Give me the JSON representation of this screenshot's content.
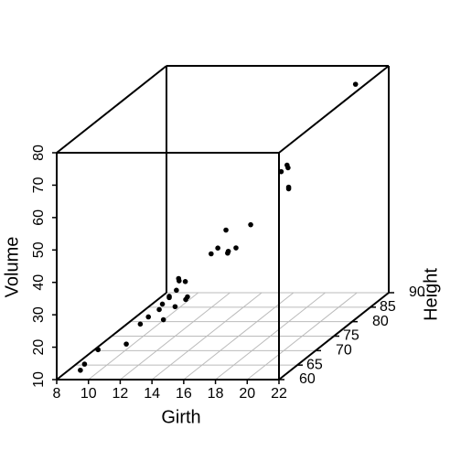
{
  "chart_data": {
    "type": "scatter3d",
    "xlabel": "Girth",
    "ylabel": "Height",
    "zlabel": "Volume",
    "x": [
      8.3,
      8.6,
      8.8,
      10.5,
      10.7,
      10.8,
      11.0,
      11.0,
      11.1,
      11.2,
      11.3,
      11.4,
      11.4,
      11.7,
      12.0,
      12.9,
      12.9,
      13.3,
      13.7,
      13.8,
      14.0,
      14.2,
      14.5,
      16.0,
      16.3,
      17.3,
      17.5,
      17.9,
      18.0,
      18.0,
      20.6
    ],
    "y": [
      70,
      65,
      63,
      72,
      81,
      83,
      66,
      75,
      80,
      75,
      79,
      76,
      76,
      69,
      75,
      74,
      85,
      86,
      71,
      64,
      78,
      80,
      74,
      72,
      77,
      81,
      82,
      80,
      80,
      80,
      87
    ],
    "z": [
      10.3,
      10.3,
      10.2,
      16.4,
      18.8,
      19.7,
      15.6,
      18.2,
      22.6,
      19.9,
      24.2,
      21.0,
      21.4,
      21.3,
      19.1,
      22.2,
      33.8,
      27.4,
      25.7,
      24.9,
      34.5,
      31.7,
      36.3,
      38.3,
      42.6,
      55.4,
      55.7,
      58.3,
      51.5,
      51.0,
      77.0
    ],
    "color": "#000000",
    "xlim": [
      8,
      22
    ],
    "xticks": [
      8,
      10,
      12,
      14,
      16,
      18,
      20,
      22
    ],
    "ylim": [
      60,
      90
    ],
    "yticks": [
      60,
      65,
      70,
      75,
      80,
      85,
      90
    ],
    "zlim": [
      10,
      80
    ],
    "zticks": [
      10,
      20,
      30,
      40,
      50,
      60,
      70,
      80
    ],
    "grid": true
  }
}
